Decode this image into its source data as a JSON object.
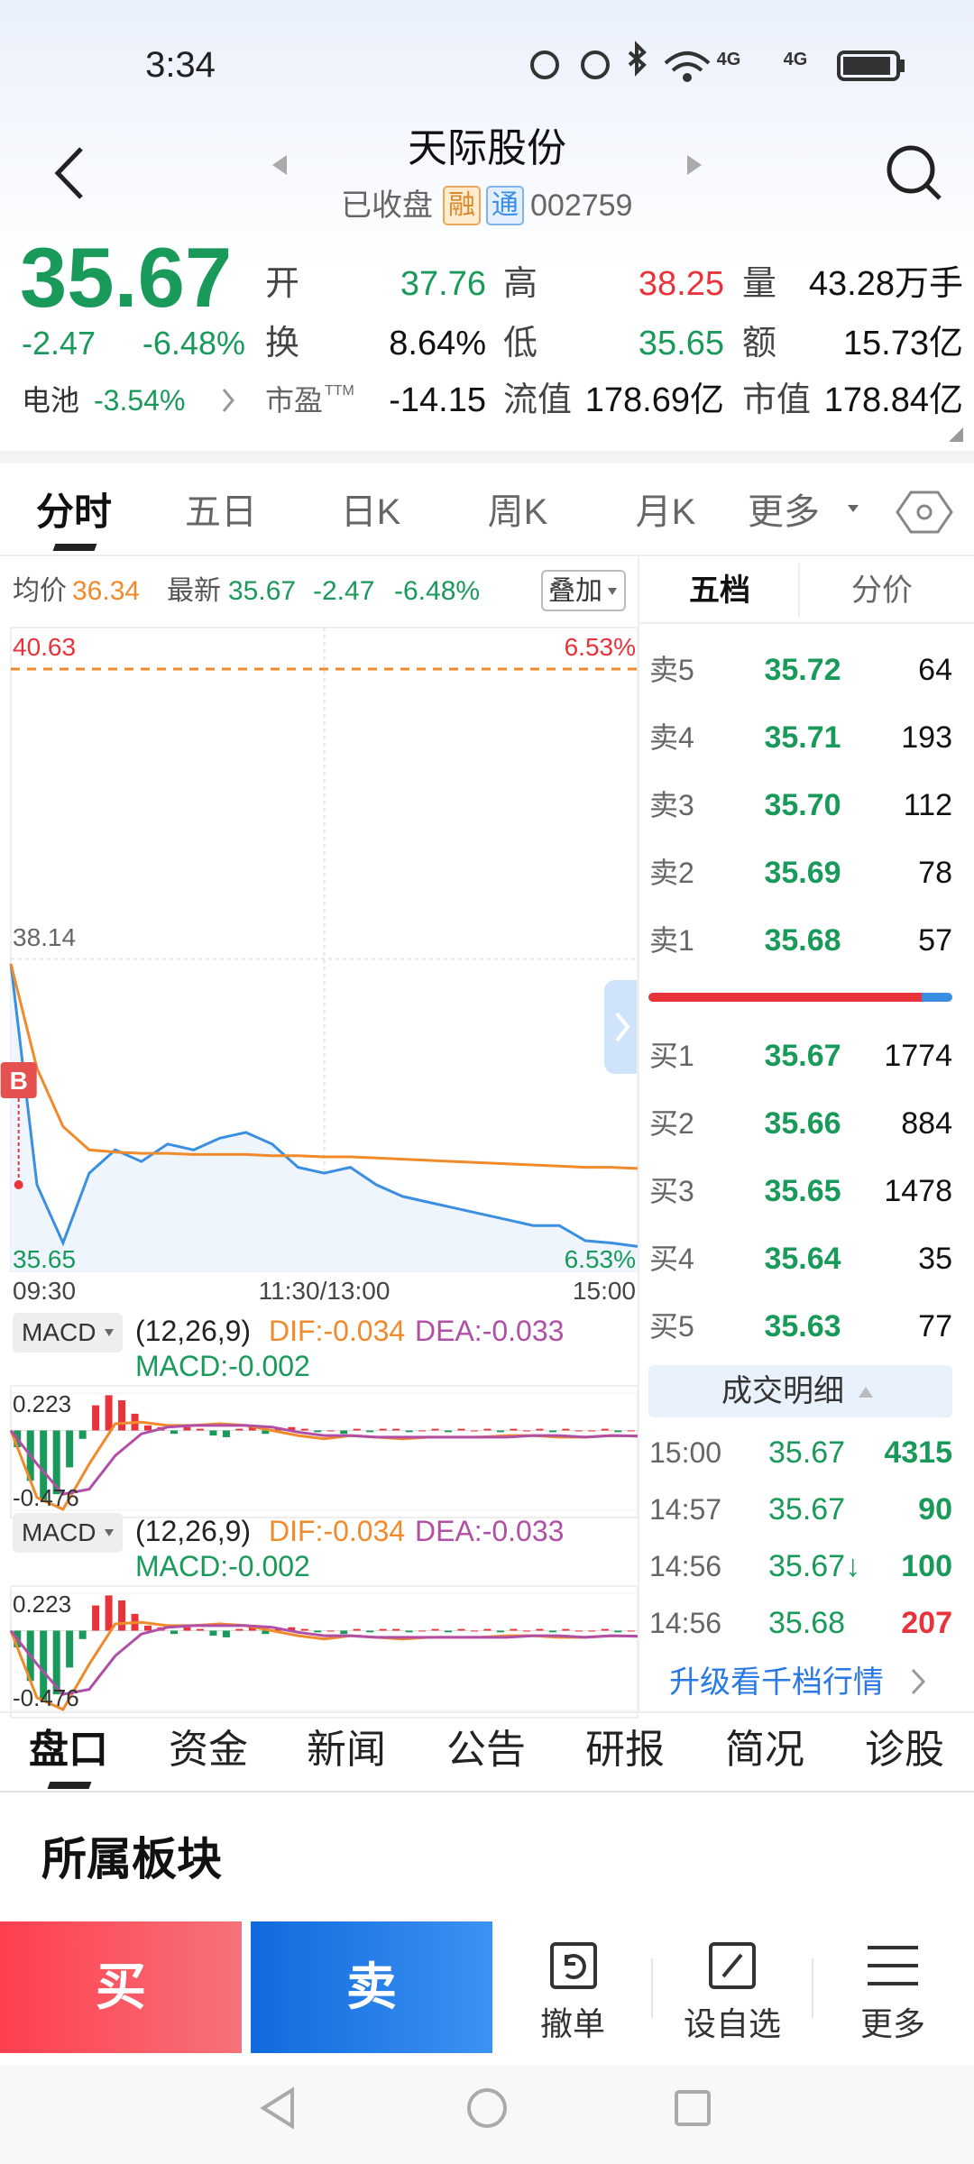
{
  "status_bar": {
    "time": "3:34",
    "network": [
      "4G",
      "4G"
    ]
  },
  "header": {
    "title": "天际股份",
    "status": "已收盘",
    "tag_margin": "融",
    "tag_connect": "通",
    "code": "002759"
  },
  "quote": {
    "price": "35.67",
    "change": "-2.47",
    "change_pct": "-6.48%",
    "battery_label": "电池",
    "battery_pct": "-3.54%"
  },
  "stats": [
    {
      "label": "开",
      "value": "37.76",
      "color": "#1a9a5a"
    },
    {
      "label": "高",
      "value": "38.25",
      "color": "#e8333a"
    },
    {
      "label": "量",
      "value": "43.28万手",
      "color": "#111111"
    },
    {
      "label": "换",
      "value": "8.64%",
      "color": "#111111"
    },
    {
      "label": "低",
      "value": "35.65",
      "color": "#1a9a5a"
    },
    {
      "label": "额",
      "value": "15.73亿",
      "color": "#111111"
    },
    {
      "label": "市盈",
      "sup": "TTM",
      "value": "-14.15",
      "color": "#111111"
    },
    {
      "label": "流值",
      "value": "178.69亿",
      "color": "#111111"
    },
    {
      "label": "市值",
      "value": "178.84亿",
      "color": "#111111"
    }
  ],
  "tabs": [
    "分时",
    "五日",
    "日K",
    "周K",
    "月K",
    "更多"
  ],
  "info": {
    "avg_label": "均价",
    "avg": "36.34",
    "latest_label": "最新",
    "latest": "35.67",
    "change": "-2.47",
    "change_pct": "-6.48%",
    "overlay": "叠加"
  },
  "intraday": {
    "type": "line",
    "x": [
      0,
      10,
      20,
      30,
      40,
      50,
      60,
      70,
      80,
      90,
      100,
      110,
      120,
      130,
      140,
      150,
      160,
      170,
      180,
      190,
      200,
      210,
      220,
      230,
      240
    ],
    "xlim": [
      0,
      240
    ],
    "xticks": [
      {
        "value": 0,
        "label": "09:30"
      },
      {
        "value": 120,
        "label": "11:30/13:00"
      },
      {
        "value": 240,
        "label": "15:00"
      }
    ],
    "ylim": [
      35.65,
      40.63
    ],
    "yticks": [
      35.65,
      38.14,
      40.63
    ],
    "pct_labels": [
      "6.53%",
      "6.53%"
    ],
    "series": [
      {
        "color": "#3b8fe0",
        "values": [
          38.1,
          36.2,
          35.7,
          36.3,
          36.5,
          36.4,
          36.55,
          36.5,
          36.6,
          36.65,
          36.55,
          36.35,
          36.3,
          36.35,
          36.2,
          36.1,
          36.05,
          36.0,
          35.95,
          35.9,
          35.85,
          35.85,
          35.72,
          35.7,
          35.67
        ]
      },
      {
        "color": "#f08a2b",
        "values": [
          38.1,
          37.2,
          36.7,
          36.5,
          36.48,
          36.47,
          36.47,
          36.46,
          36.46,
          36.46,
          36.45,
          36.45,
          36.44,
          36.44,
          36.43,
          36.42,
          36.41,
          36.4,
          36.39,
          36.38,
          36.37,
          36.36,
          36.35,
          36.35,
          36.34
        ]
      }
    ],
    "marker": {
      "label": "B",
      "x": 3,
      "price": 36.2
    }
  },
  "macd_panels": [
    {
      "name": "MACD",
      "params": "(12,26,9)",
      "dif_label": "DIF:-0.034",
      "dea_label": "DEA:-0.033",
      "macd_label": "MACD:-0.002"
    },
    {
      "name": "MACD",
      "params": "(12,26,9)",
      "dif_label": "DIF:-0.034",
      "dea_label": "DEA:-0.033",
      "macd_label": "MACD:-0.002"
    }
  ],
  "macd": {
    "type": "bar",
    "ylim": [
      -0.476,
      0.223
    ],
    "yticks": [
      -0.476,
      0.223
    ],
    "colors": {
      "up": "#e8333a",
      "down": "#1a9a5a"
    },
    "x": [
      0,
      5,
      10,
      15,
      20,
      25,
      30,
      35,
      40,
      45,
      50,
      55,
      60,
      65,
      70,
      75,
      80,
      85,
      90,
      95,
      100,
      105,
      110,
      115,
      120,
      125,
      130,
      135,
      140,
      145,
      150,
      155,
      160,
      165,
      170,
      175,
      180,
      185,
      190,
      195,
      200,
      205,
      210,
      215,
      220,
      225,
      230,
      235
    ],
    "values": [
      -0.1,
      -0.3,
      -0.42,
      -0.38,
      -0.22,
      -0.05,
      0.15,
      0.21,
      0.18,
      0.1,
      0.03,
      0.02,
      -0.02,
      0.02,
      0.01,
      -0.03,
      -0.04,
      0.01,
      0.02,
      -0.02,
      0.01,
      0.02,
      0.01,
      -0.01,
      0.0,
      -0.02,
      0.01,
      -0.01,
      0.01,
      0.01,
      -0.01,
      0.0,
      0.01,
      -0.01,
      0.01,
      0.0,
      0.01,
      -0.01,
      0.01,
      0.0,
      0.01,
      -0.01,
      0.01,
      0.0,
      0.0,
      0.01,
      -0.01,
      0.0
    ],
    "lines": {
      "x": [
        0,
        10,
        20,
        30,
        40,
        50,
        60,
        70,
        80,
        90,
        100,
        110,
        120,
        130,
        140,
        150,
        160,
        170,
        180,
        190,
        200,
        210,
        220,
        230,
        240
      ],
      "series": [
        {
          "color": "#f08a2b",
          "values": [
            0.0,
            -0.4,
            -0.47,
            -0.2,
            0.04,
            0.05,
            0.03,
            0.03,
            0.04,
            0.03,
            0.0,
            -0.03,
            -0.05,
            -0.03,
            -0.04,
            -0.05,
            -0.04,
            -0.04,
            -0.04,
            -0.03,
            -0.03,
            -0.04,
            -0.04,
            -0.03,
            -0.034
          ]
        },
        {
          "color": "#b04fa5",
          "values": [
            0.0,
            -0.2,
            -0.38,
            -0.35,
            -0.15,
            -0.02,
            0.02,
            0.03,
            0.03,
            0.03,
            0.02,
            -0.01,
            -0.03,
            -0.03,
            -0.04,
            -0.04,
            -0.04,
            -0.04,
            -0.04,
            -0.04,
            -0.03,
            -0.03,
            -0.04,
            -0.03,
            -0.033
          ]
        }
      ]
    }
  },
  "order_book": {
    "header": [
      "五档",
      "分价"
    ],
    "sell": [
      {
        "label": "卖5",
        "price": "35.72",
        "volume": "64"
      },
      {
        "label": "卖4",
        "price": "35.71",
        "volume": "193"
      },
      {
        "label": "卖3",
        "price": "35.70",
        "volume": "112"
      },
      {
        "label": "卖2",
        "price": "35.69",
        "volume": "78"
      },
      {
        "label": "卖1",
        "price": "35.68",
        "volume": "57"
      }
    ],
    "buy": [
      {
        "label": "买1",
        "price": "35.67",
        "volume": "1774"
      },
      {
        "label": "买2",
        "price": "35.66",
        "volume": "884"
      },
      {
        "label": "买3",
        "price": "35.65",
        "volume": "1478"
      },
      {
        "label": "买4",
        "price": "35.64",
        "volume": "35"
      },
      {
        "label": "买5",
        "price": "35.63",
        "volume": "77"
      }
    ]
  },
  "trades": {
    "title": "成交明细",
    "rows": [
      {
        "time": "15:00",
        "price": "35.67",
        "volume": "4315",
        "color": "#1a9a5a"
      },
      {
        "time": "14:57",
        "price": "35.67",
        "volume": "90",
        "color": "#1a9a5a"
      },
      {
        "time": "14:56",
        "price": "35.67↓",
        "volume": "100",
        "color": "#1a9a5a"
      },
      {
        "time": "14:56",
        "price": "35.68",
        "volume": "207",
        "color": "#e8333a"
      }
    ],
    "upgrade": "升级看千档行情"
  },
  "bottom_tabs": [
    "盘口",
    "资金",
    "新闻",
    "公告",
    "研报",
    "简况",
    "诊股"
  ],
  "section_title": "所属板块",
  "actions": {
    "buy": "买",
    "sell": "卖",
    "cancel": "撤单",
    "watch": "设自选",
    "more": "更多"
  }
}
